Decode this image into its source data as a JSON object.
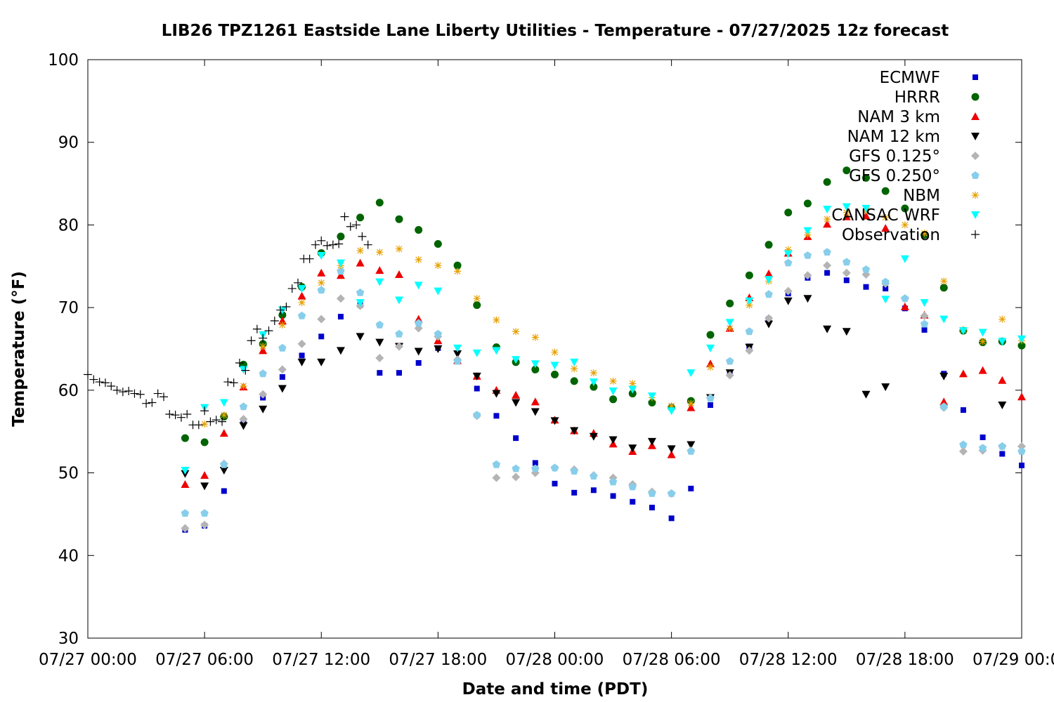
{
  "chart_data": {
    "type": "scatter",
    "title": "LIB26 TPZ1261 Eastside Lane Liberty Utilities - Temperature - 07/27/2025 12z forecast",
    "xlabel": "Date and time (PDT)",
    "ylabel": "Temperature (°F)",
    "x_unit": "hours after 07/27 00:00 PDT",
    "xlim": [
      0,
      48
    ],
    "ylim": [
      30,
      100
    ],
    "x_ticks": [
      0,
      6,
      12,
      18,
      24,
      30,
      36,
      42,
      48
    ],
    "x_tick_labels": [
      "07/27 00:00",
      "07/27 06:00",
      "07/27 12:00",
      "07/27 18:00",
      "07/28 00:00",
      "07/28 06:00",
      "07/28 12:00",
      "07/28 18:00",
      "07/29 00:00"
    ],
    "y_ticks": [
      30,
      40,
      50,
      60,
      70,
      80,
      90,
      100
    ],
    "grid": false,
    "legend_position": "top-right",
    "series": [
      {
        "name": "ECMWF",
        "color": "#0000cc",
        "marker": "square",
        "x": [
          5,
          6,
          7,
          8,
          9,
          10,
          11,
          12,
          13,
          14,
          15,
          16,
          17,
          18,
          19,
          20,
          21,
          22,
          23,
          24,
          25,
          26,
          27,
          28,
          29,
          30,
          31,
          32,
          33,
          34,
          35,
          36,
          37,
          38,
          39,
          40,
          41,
          42,
          43,
          44,
          45,
          46,
          47,
          48
        ],
        "y": [
          43.1,
          43.6,
          47.8,
          56.2,
          59.1,
          61.6,
          64.2,
          66.5,
          68.9,
          70.3,
          62.1,
          62.1,
          63.3,
          65.1,
          63.5,
          60.2,
          56.9,
          54.2,
          51.2,
          48.7,
          47.6,
          47.9,
          47.2,
          46.5,
          45.8,
          44.5,
          48.1,
          58.2,
          62.1,
          65.3,
          68.6,
          71.7,
          73.6,
          74.2,
          73.3,
          72.5,
          72.3,
          69.9,
          67.3,
          62.0,
          57.6,
          54.3,
          52.3,
          50.9
        ]
      },
      {
        "name": "HRRR",
        "color": "#006400",
        "marker": "circle",
        "x": [
          5,
          6,
          7,
          8,
          9,
          10,
          11,
          12,
          13,
          14,
          15,
          16,
          17,
          18,
          19,
          20,
          21,
          22,
          23,
          24,
          25,
          26,
          27,
          28,
          29,
          30,
          31,
          32,
          33,
          34,
          35,
          36,
          37,
          38,
          39,
          40,
          41,
          42,
          43,
          44,
          45,
          46,
          47,
          48
        ],
        "y": [
          54.2,
          53.7,
          56.8,
          63.1,
          65.6,
          69.1,
          72.5,
          76.6,
          78.6,
          80.9,
          82.7,
          80.7,
          79.4,
          77.7,
          75.1,
          70.3,
          65.2,
          63.4,
          62.5,
          61.9,
          61.1,
          60.4,
          58.9,
          59.6,
          58.5,
          57.9,
          58.7,
          66.7,
          70.5,
          73.9,
          77.6,
          81.5,
          82.6,
          85.2,
          86.6,
          85.7,
          84.1,
          82.0,
          78.8,
          72.4,
          67.2,
          65.8,
          65.9,
          65.4
        ]
      },
      {
        "name": "NAM 3 km",
        "color": "#ee0000",
        "marker": "triangle-up",
        "x": [
          5,
          6,
          7,
          8,
          9,
          10,
          11,
          12,
          13,
          14,
          15,
          16,
          17,
          18,
          19,
          20,
          21,
          22,
          23,
          24,
          25,
          26,
          27,
          28,
          29,
          30,
          31,
          32,
          33,
          34,
          35,
          36,
          37,
          38,
          39,
          40,
          41,
          42,
          43,
          44,
          45,
          46,
          47,
          48
        ],
        "y": [
          48.6,
          49.7,
          54.8,
          60.4,
          64.8,
          68.4,
          71.4,
          74.2,
          73.9,
          75.4,
          74.5,
          74.0,
          68.6,
          66.0,
          63.6,
          61.7,
          60.0,
          59.4,
          58.6,
          56.4,
          55.1,
          54.8,
          53.5,
          52.6,
          53.3,
          52.2,
          57.9,
          63.2,
          67.5,
          71.2,
          74.1,
          76.6,
          78.6,
          80.1,
          81.0,
          81.1,
          79.6,
          70.1,
          69.1,
          58.6,
          62.0,
          62.4,
          61.2,
          59.2
        ]
      },
      {
        "name": "NAM 12 km",
        "color": "#000000",
        "marker": "triangle-down",
        "x": [
          5,
          6,
          7,
          8,
          9,
          10,
          11,
          12,
          13,
          14,
          15,
          16,
          17,
          18,
          19,
          20,
          21,
          22,
          23,
          24,
          25,
          26,
          27,
          28,
          29,
          30,
          31,
          32,
          33,
          34,
          35,
          36,
          37,
          38,
          39,
          40,
          41,
          42,
          43,
          44,
          47
        ],
        "y": [
          49.9,
          48.4,
          50.3,
          55.7,
          57.7,
          60.2,
          63.4,
          63.4,
          64.8,
          66.5,
          65.8,
          65.3,
          64.7,
          65.0,
          64.4,
          61.7,
          59.6,
          58.5,
          57.4,
          56.3,
          55.1,
          54.4,
          54.0,
          53.0,
          53.8,
          52.9,
          53.4,
          59.1,
          62.1,
          65.2,
          68.0,
          70.8,
          71.1,
          67.4,
          67.1,
          59.5,
          60.4,
          null,
          null,
          61.7,
          58.2
        ]
      },
      {
        "name": "GFS 0.125°",
        "color": "#b4b4b4",
        "marker": "diamond",
        "x": [
          5,
          6,
          7,
          8,
          9,
          10,
          11,
          12,
          13,
          14,
          15,
          16,
          17,
          18,
          19,
          20,
          21,
          22,
          23,
          24,
          25,
          26,
          27,
          28,
          29,
          30,
          31,
          32,
          33,
          34,
          35,
          36,
          37,
          38,
          39,
          40,
          41,
          42,
          43,
          44,
          45,
          46,
          47,
          48
        ],
        "y": [
          43.3,
          43.7,
          51.1,
          56.5,
          59.5,
          62.5,
          65.6,
          68.6,
          71.1,
          70.2,
          63.9,
          65.3,
          67.5,
          66.5,
          63.7,
          56.9,
          49.4,
          49.5,
          50.0,
          50.6,
          50.4,
          49.7,
          49.4,
          48.6,
          47.7,
          47.5,
          52.7,
          59.1,
          61.8,
          64.8,
          68.7,
          72.0,
          73.9,
          75.1,
          74.2,
          74.0,
          72.9,
          71.1,
          69.0,
          57.9,
          52.6,
          52.7,
          53.2,
          53.2
        ]
      },
      {
        "name": "GFS 0.250°",
        "color": "#87ceeb",
        "marker": "pentagon",
        "x": [
          5,
          6,
          7,
          8,
          9,
          10,
          11,
          12,
          13,
          14,
          15,
          16,
          17,
          18,
          19,
          20,
          21,
          22,
          23,
          24,
          25,
          26,
          27,
          28,
          29,
          30,
          31,
          32,
          33,
          34,
          35,
          36,
          37,
          38,
          39,
          40,
          41,
          42,
          43,
          44,
          45,
          46,
          47,
          48
        ],
        "y": [
          45.1,
          45.1,
          51.0,
          58.0,
          62.0,
          65.1,
          69.0,
          72.1,
          74.4,
          71.8,
          67.9,
          66.8,
          68.1,
          66.8,
          63.5,
          57.0,
          51.0,
          50.5,
          50.5,
          50.6,
          50.2,
          49.6,
          48.9,
          48.3,
          47.5,
          47.5,
          52.6,
          59.0,
          63.5,
          67.1,
          71.6,
          75.4,
          76.3,
          76.7,
          75.5,
          74.6,
          73.1,
          71.1,
          68.0,
          58.0,
          53.4,
          53.0,
          53.2,
          52.6
        ]
      },
      {
        "name": "NBM",
        "color": "#e6a000",
        "marker": "asterisk",
        "x": [
          6,
          7,
          8,
          9,
          10,
          11,
          12,
          13,
          14,
          15,
          16,
          17,
          18,
          19,
          20,
          21,
          22,
          23,
          24,
          25,
          26,
          27,
          28,
          29,
          30,
          31,
          32,
          33,
          34,
          35,
          36,
          37,
          38,
          39,
          40,
          41,
          42,
          43,
          44,
          45,
          46,
          47,
          48
        ],
        "y": [
          55.9,
          57.0,
          60.5,
          65.3,
          67.9,
          70.6,
          73.0,
          75.1,
          76.9,
          76.7,
          77.1,
          75.8,
          75.1,
          74.4,
          71.1,
          68.5,
          67.1,
          66.4,
          64.6,
          62.6,
          62.1,
          61.1,
          60.8,
          59.1,
          58.1,
          58.4,
          62.8,
          67.5,
          70.3,
          73.2,
          77.0,
          78.8,
          80.7,
          81.5,
          81.7,
          80.9,
          80.0,
          79.0,
          73.2,
          67.3,
          65.9,
          68.6,
          66.0
        ]
      },
      {
        "name": "CANSAC WRF",
        "color": "#00ffff",
        "marker": "triangle-down",
        "x": [
          5,
          6,
          7,
          8,
          9,
          10,
          11,
          12,
          13,
          14,
          15,
          16,
          17,
          18,
          19,
          20,
          21,
          22,
          23,
          24,
          25,
          26,
          27,
          28,
          29,
          30,
          31,
          32,
          33,
          34,
          35,
          36,
          37,
          38,
          39,
          40,
          41,
          42,
          43,
          44,
          45,
          46,
          47,
          48
        ],
        "y": [
          50.3,
          57.9,
          58.5,
          62.5,
          66.7,
          69.7,
          72.3,
          76.3,
          75.4,
          70.6,
          73.1,
          70.9,
          72.7,
          72.0,
          65.1,
          64.5,
          64.8,
          63.7,
          63.2,
          63.0,
          63.4,
          61.0,
          59.9,
          60.1,
          59.3,
          57.5,
          62.1,
          65.1,
          68.2,
          70.8,
          73.4,
          76.5,
          79.3,
          81.9,
          82.2,
          82.0,
          71.0,
          75.9,
          70.6,
          68.6,
          67.2,
          67.0,
          65.9,
          66.2
        ]
      },
      {
        "name": "Observation",
        "color": "#000000",
        "marker": "plus",
        "x": [
          0.0,
          0.3,
          0.6,
          0.9,
          1.2,
          1.5,
          1.8,
          2.1,
          2.4,
          2.7,
          3.0,
          3.3,
          3.6,
          3.9,
          4.2,
          4.5,
          4.8,
          5.1,
          5.4,
          5.7,
          6.0,
          6.3,
          6.6,
          6.9,
          7.2,
          7.5,
          7.8,
          8.1,
          8.4,
          8.7,
          9.0,
          9.3,
          9.6,
          9.9,
          10.2,
          10.5,
          10.8,
          11.1,
          11.4,
          11.7,
          12.0,
          12.3,
          12.6,
          12.9,
          13.2,
          13.5,
          13.8,
          14.1,
          14.4,
          14.7,
          15.0,
          15.3,
          15.6
        ],
        "y": [
          61.9,
          61.3,
          61.0,
          60.9,
          60.5,
          60.0,
          59.8,
          59.9,
          59.6,
          59.5,
          58.4,
          58.5,
          59.6,
          59.2,
          57.1,
          57.0,
          56.7,
          57.1,
          55.8,
          55.8,
          57.5,
          56.2,
          56.4,
          56.2,
          61.0,
          60.9,
          63.3,
          62.4,
          66.0,
          67.4,
          66.3,
          67.2,
          68.4,
          69.7,
          70.1,
          72.3,
          73.0,
          75.9,
          75.9,
          77.6,
          78.1,
          77.5,
          77.6,
          77.7,
          81.0,
          79.8,
          80.0,
          78.6,
          77.6,
          null,
          null,
          null,
          null
        ]
      }
    ]
  }
}
